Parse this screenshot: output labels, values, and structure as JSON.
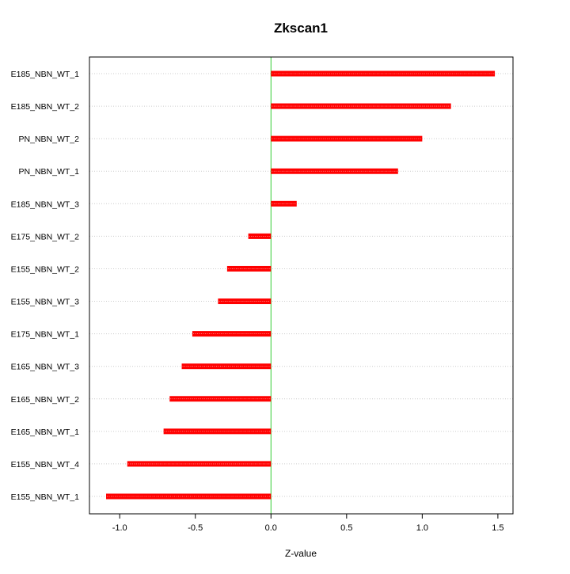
{
  "chart_data": {
    "type": "bar",
    "orientation": "horizontal",
    "title": "Zkscan1",
    "xlabel": "Z-value",
    "ylabel": "",
    "categories": [
      "E185_NBN_WT_1",
      "E185_NBN_WT_2",
      "PN_NBN_WT_2",
      "PN_NBN_WT_1",
      "E185_NBN_WT_3",
      "E175_NBN_WT_2",
      "E155_NBN_WT_2",
      "E155_NBN_WT_3",
      "E175_NBN_WT_1",
      "E165_NBN_WT_3",
      "E165_NBN_WT_2",
      "E165_NBN_WT_1",
      "E155_NBN_WT_4",
      "E155_NBN_WT_1"
    ],
    "values": [
      1.48,
      1.19,
      1.0,
      0.84,
      0.17,
      -0.15,
      -0.29,
      -0.35,
      -0.52,
      -0.59,
      -0.67,
      -0.71,
      -0.95,
      -1.09
    ],
    "xlim": [
      -1.2,
      1.6
    ],
    "xticks": [
      -1.0,
      -0.5,
      0.0,
      0.5,
      1.0,
      1.5
    ],
    "xtick_labels": [
      "-1.0",
      "-0.5",
      "0.0",
      "0.5",
      "1.0",
      "1.5"
    ],
    "grid": "horizontal dotted",
    "reference_line": 0,
    "colors": {
      "bar": "#ff0000",
      "bar_highlight": "#ffaaaa",
      "reference_line": "#33cc33",
      "grid": "#cccccc",
      "frame": "#000000"
    }
  }
}
